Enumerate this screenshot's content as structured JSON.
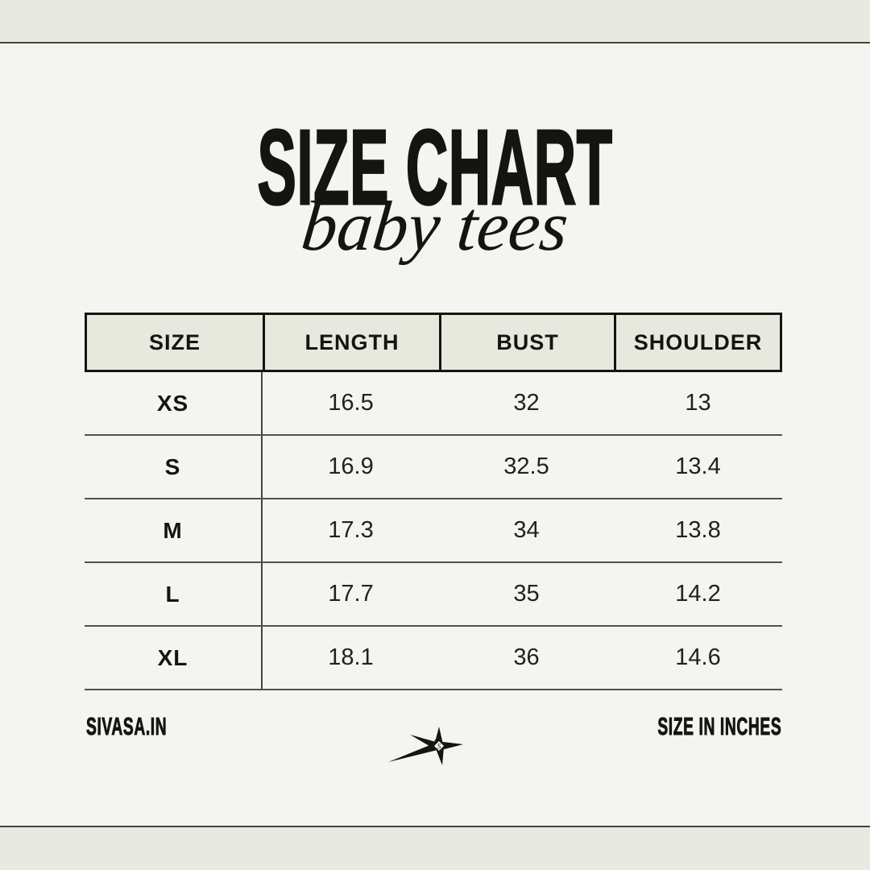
{
  "page": {
    "background_color": "#f4f4f0",
    "band_color": "#e8eae1",
    "rule_color": "#45443e",
    "ink_color": "#16140e",
    "header_cell_color": "#e7e9de"
  },
  "header": {
    "title": "SIZE CHART",
    "subtitle": "baby tees"
  },
  "chart_data": {
    "type": "table",
    "title": "SIZE CHART",
    "subtitle": "baby tees",
    "columns": [
      "SIZE",
      "LENGTH",
      "BUST",
      "SHOULDER"
    ],
    "rows": [
      [
        "XS",
        "16.5",
        "32",
        "13"
      ],
      [
        "S",
        "16.9",
        "32.5",
        "13.4"
      ],
      [
        "M",
        "17.3",
        "34",
        "13.8"
      ],
      [
        "L",
        "17.7",
        "35",
        "14.2"
      ],
      [
        "XL",
        "18.1",
        "36",
        "14.6"
      ]
    ],
    "units": "inches"
  },
  "footer": {
    "brand": "SIVASA.IN",
    "units_note": "SIZE IN INCHES",
    "logo_icon": "sparkle-star-icon"
  }
}
